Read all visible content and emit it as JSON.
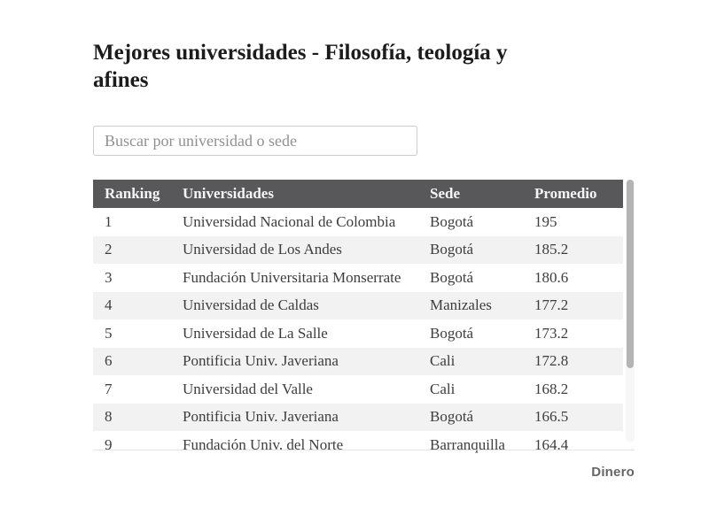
{
  "page": {
    "title": "Mejores universidades - Filosofía, teología y afines",
    "title_line1": "Mejores universidades - Filosofía, teología y",
    "title_line2": "afines",
    "brand": "Dinero"
  },
  "search": {
    "placeholder": "Buscar por universidad o sede",
    "value": ""
  },
  "table": {
    "columns": [
      "Ranking",
      "Universidades",
      "Sede",
      "Promedio"
    ],
    "rows": [
      [
        "1",
        "Universidad Nacional de Colombia",
        "Bogotá",
        "195"
      ],
      [
        "2",
        "Universidad de Los Andes",
        "Bogotá",
        "185.2"
      ],
      [
        "3",
        "Fundación Universitaria Monserrate",
        "Bogotá",
        "180.6"
      ],
      [
        "4",
        "Universidad de Caldas",
        "Manizales",
        "177.2"
      ],
      [
        "5",
        "Universidad de La Salle",
        "Bogotá",
        "173.2"
      ],
      [
        "6",
        "Pontificia Univ. Javeriana",
        "Cali",
        "172.8"
      ],
      [
        "7",
        "Universidad del Valle",
        "Cali",
        "168.2"
      ],
      [
        "8",
        "Pontificia Univ. Javeriana",
        "Bogotá",
        "166.5"
      ],
      [
        "9",
        "Fundación Univ. del Norte",
        "Barranquilla",
        "164.4"
      ]
    ]
  },
  "colors": {
    "header_bg": "#58585a",
    "header_text": "#f5f5f5",
    "stripe": "#f2f2f2",
    "body_text": "#3d3d3d",
    "title_color": "#1c1c1c",
    "search_border": "#cccccc",
    "placeholder_color": "#909090",
    "scrollbar_thumb": "#b4b4b4",
    "divider": "#e4e4e4",
    "brand_color": "#666666"
  }
}
